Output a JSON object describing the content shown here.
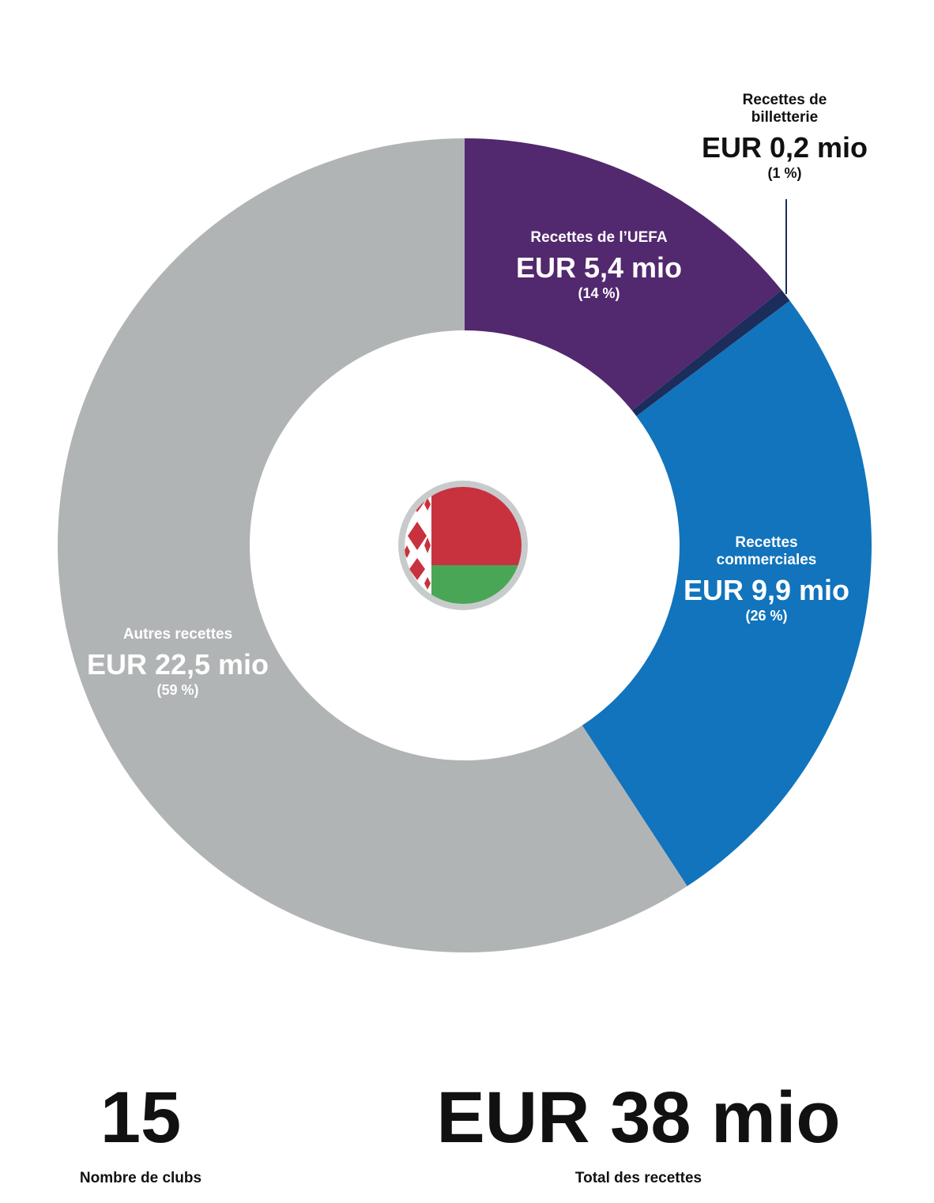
{
  "chart_data": {
    "type": "donut",
    "categories": [
      "Recettes de l’UEFA",
      "Recettes de billetterie",
      "Recettes commerciales",
      "Autres recettes"
    ],
    "values": [
      5.4,
      0.2,
      9.9,
      22.5
    ],
    "value_labels": [
      "EUR 5,4 mio",
      "EUR 0,2 mio",
      "EUR 9,9 mio",
      "EUR 22,5 mio"
    ],
    "percent_labels": [
      "(14 %)",
      "(1 %)",
      "(26 %)",
      "(59 %)"
    ],
    "colors": [
      "#52286e",
      "#1c2d5c",
      "#1174bc",
      "#b1b4b5"
    ]
  },
  "stats": {
    "clubs": 15,
    "clubs_label": "Nombre de clubs",
    "total": 38,
    "total_value_label": "EUR 38 mio",
    "total_label": "Total des recettes"
  }
}
